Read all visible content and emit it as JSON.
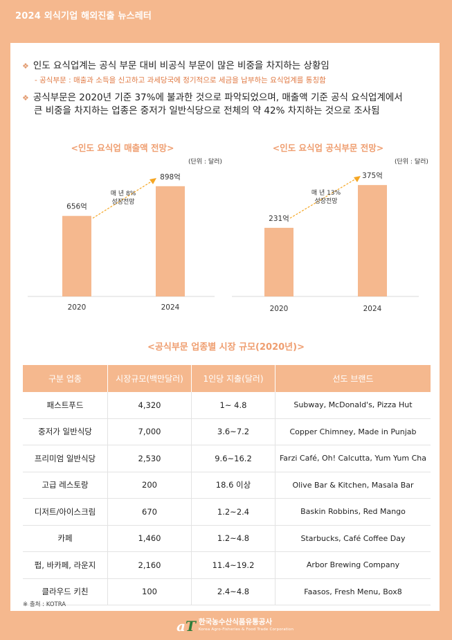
{
  "header": {
    "title": "2024 외식기업 해외진출 뉴스레터"
  },
  "bullets": [
    {
      "text": "인도 요식업계는 공식 부문 대비 비공식 부문이 많은 비중을 차지하는 상황임"
    },
    {
      "line1": "공식부문은 2020년 기준 37%에 불과한 것으로 파악되었으며, 매출액 기준 공식 요식업계에서",
      "line2": "큰 비중을 차지하는 업종은 중저가 일반식당으로 전체의 약 42% 차지하는 것으로 조사됨"
    }
  ],
  "sub_note": "- 공식부문 : 매출과 소득을 신고하고 과세당국에 정기적으로 세금을 납부하는 요식업계를 통칭함",
  "chart_data": [
    {
      "type": "bar",
      "title": "<인도 요식업 매출액 전망>",
      "unit": "(단위 : 달러)",
      "categories": [
        "2020",
        "2024"
      ],
      "values": [
        656,
        898
      ],
      "value_labels": [
        "656억",
        "898억"
      ],
      "annotation": [
        "매 년 8%",
        "성장전망"
      ],
      "ylim": [
        0,
        1100
      ]
    },
    {
      "type": "bar",
      "title": "<인도 요식업 공식부문 전망>",
      "unit": "(단위 : 달러)",
      "categories": [
        "2020",
        "2024"
      ],
      "values": [
        231,
        375
      ],
      "value_labels": [
        "231억",
        "375억"
      ],
      "annotation": [
        "매 년 13%",
        "성장전망"
      ],
      "ylim": [
        0,
        450
      ]
    }
  ],
  "table": {
    "title": "<공식부문 업종별 시장 규모(2020년)>",
    "headers": [
      "구분 업종",
      "시장규모(백만달러)",
      "1인당 지출(달러)",
      "선도 브랜드"
    ],
    "rows": [
      [
        "패스트푸드",
        "4,320",
        "1~ 4.8",
        "Subway, McDonald's, Pizza Hut"
      ],
      [
        "중저가 일반식당",
        "7,000",
        "3.6~7.2",
        "Copper Chimney, Made in Punjab"
      ],
      [
        "프리미엄 일반식당",
        "2,530",
        "9.6~16.2",
        "Farzi Café, Oh! Calcutta, Yum Yum Cha"
      ],
      [
        "고급 레스토랑",
        "200",
        "18.6 이상",
        "Olive Bar & Kitchen, Masala Bar"
      ],
      [
        "디저트/아이스크림",
        "670",
        "1.2~2.4",
        "Baskin Robbins, Red Mango"
      ],
      [
        "카페",
        "1,460",
        "1.2~4.8",
        "Starbucks, Café Coffee Day"
      ],
      [
        "펍, 바카페, 라운지",
        "2,160",
        "11.4~19.2",
        "Arbor Brewing Company"
      ],
      [
        "클라우드 키친",
        "100",
        "2.4~4.8",
        "Faasos, Fresh Menu, Box8"
      ]
    ]
  },
  "source": "※ 출처 :  KOTRA",
  "footer": {
    "logo_a": "a",
    "logo_t": "T",
    "org": "한국농수산식품유통공사",
    "org_en": "Korea Agro-Fisheries & Food Trade Corporation"
  },
  "colors": {
    "bar": "#f5b88e",
    "accent": "#ef9e70",
    "arrow": "#f5a623"
  }
}
